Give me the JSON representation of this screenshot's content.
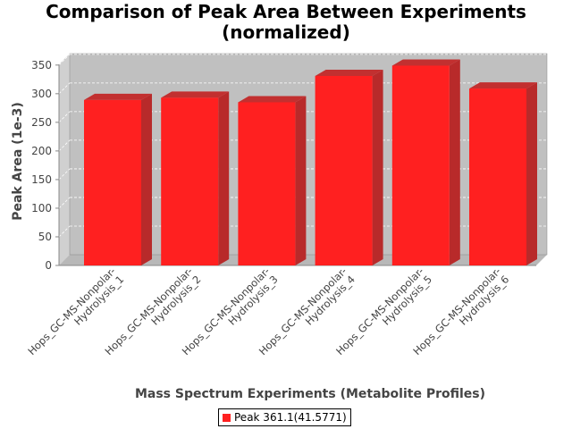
{
  "chart_data": {
    "type": "bar",
    "title": "Comparison of Peak Area Between Experiments (normalized)",
    "title_lines": [
      "Comparison of Peak Area Between Experiments",
      "(normalized)"
    ],
    "xlabel": "Mass Spectrum Experiments (Metabolite Profiles)",
    "ylabel": "Peak Area (1e-3)",
    "ylim": [
      0,
      370
    ],
    "yticks": [
      0,
      50,
      100,
      150,
      200,
      250,
      300,
      350
    ],
    "categories": [
      [
        "Hops_GC-MS-Nonpolar-",
        "Hydrolysis_1"
      ],
      [
        "Hops_GC-MS-Nonpolar-",
        "Hydrolysis_2"
      ],
      [
        "Hops_GC-MS-Nonpolar-",
        "Hydrolysis_3"
      ],
      [
        "Hops_GC-MS-Nonpolar-",
        "Hydrolysis_4"
      ],
      [
        "Hops_GC-MS-Nonpolar-",
        "Hydrolysis_5"
      ],
      [
        "Hops_GC-MS-Nonpolar-",
        "Hydrolysis_6"
      ]
    ],
    "series": [
      {
        "name": "Peak 361.1(41.5771)",
        "values": [
          289,
          293,
          285,
          331,
          349,
          309
        ],
        "color": "#ff2020"
      }
    ],
    "grid": true,
    "legend_position": "bottom",
    "render_3d": true
  }
}
